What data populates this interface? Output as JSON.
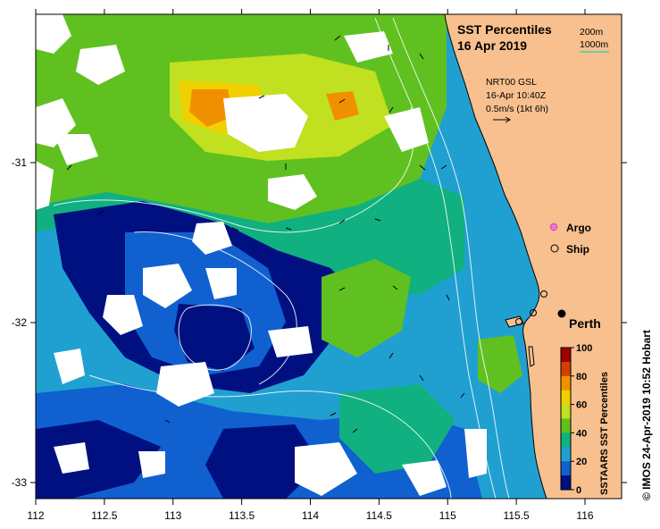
{
  "title": {
    "line1": "SST Percentiles",
    "line2": "16 Apr 2019"
  },
  "contour_legend": {
    "label_200": "200m",
    "label_1000": "1000m",
    "color_1000": "#40d0b0"
  },
  "current_info": {
    "line1": "NRT00 GSL",
    "line2": "16-Apr 10:40Z",
    "line3": "0.5m/s (1kt 6h)"
  },
  "markers": {
    "argo_label": "Argo",
    "ship_label": "Ship",
    "city_label": "Perth",
    "argo_color": "#e040e0"
  },
  "colorbar": {
    "title": "SSTAARS SST Percentiles",
    "ticks": [
      "100",
      "80",
      "60",
      "40",
      "20",
      "0"
    ],
    "colors": [
      "#a00000",
      "#d04000",
      "#f09000",
      "#f0d000",
      "#c0e020",
      "#60c020",
      "#10b080",
      "#20a0d0",
      "#1060d0",
      "#001080"
    ]
  },
  "x_axis": {
    "ticks": [
      "112",
      "112.5",
      "113",
      "113.5",
      "114",
      "114.5",
      "115",
      "115.5",
      "116"
    ]
  },
  "y_axis": {
    "ticks": [
      "-31",
      "-32",
      "-33"
    ]
  },
  "credit": "© IMOS 24-Apr-2019 10:52 Hobart",
  "colors": {
    "land": "#f7c08e",
    "missing": "#ffffff",
    "frame": "#000000"
  }
}
